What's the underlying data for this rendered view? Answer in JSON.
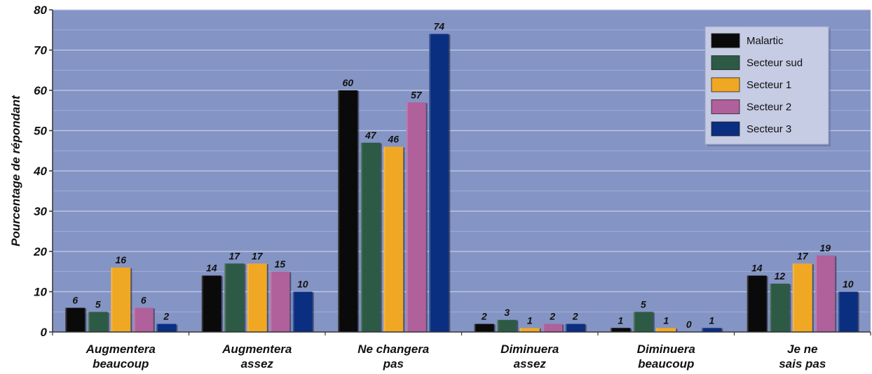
{
  "chart_data": {
    "type": "bar",
    "title": "",
    "xlabel": "",
    "ylabel": "Pourcentage de répondant",
    "ylim": [
      0,
      80
    ],
    "yticks": [
      0,
      10,
      20,
      30,
      40,
      50,
      60,
      70,
      80
    ],
    "grid": true,
    "legend_position": "top-right",
    "categories": [
      [
        "Augmentera",
        "beaucoup"
      ],
      [
        "Augmentera",
        "assez"
      ],
      [
        "Ne changera",
        "pas"
      ],
      [
        "Diminuera",
        "assez"
      ],
      [
        "Diminuera",
        "beaucoup"
      ],
      [
        "Je ne",
        "sais pas"
      ]
    ],
    "series": [
      {
        "name": "Malartic",
        "color": "#0a0a0a",
        "values": [
          6,
          14,
          60,
          2,
          1,
          14
        ]
      },
      {
        "name": "Secteur sud",
        "color": "#2d5a45",
        "values": [
          5,
          17,
          47,
          3,
          5,
          12
        ]
      },
      {
        "name": "Secteur 1",
        "color": "#f0a824",
        "values": [
          16,
          17,
          46,
          1,
          1,
          17
        ]
      },
      {
        "name": "Secteur 2",
        "color": "#b0609a",
        "values": [
          6,
          15,
          57,
          2,
          0,
          19
        ]
      },
      {
        "name": "Secteur 3",
        "color": "#0a2e80",
        "values": [
          2,
          10,
          74,
          2,
          1,
          10
        ]
      }
    ],
    "colors": {
      "plot_background": "#8494c4",
      "gridline": "#c8d0ea",
      "legend_background": "#c6cce4"
    }
  }
}
